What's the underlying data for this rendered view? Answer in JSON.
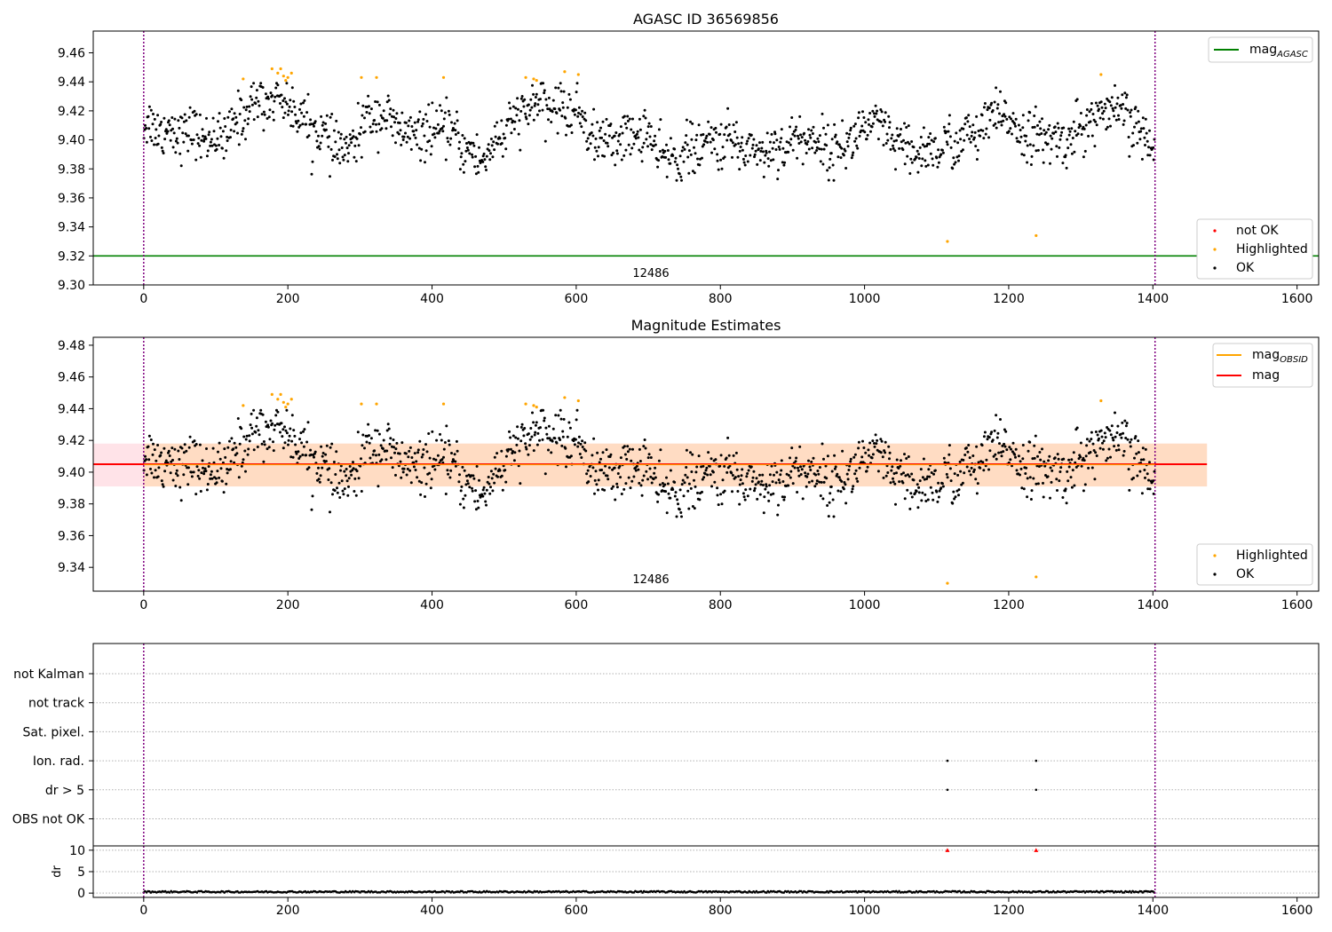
{
  "figure": {
    "background": "#ffffff"
  },
  "colors": {
    "ok": "#000000",
    "highlighted": "#ffa500",
    "not_ok": "#ff0000",
    "agasc_line": "#008000",
    "mean_line": "#ff0000",
    "obsid_line": "#ffa500",
    "band_outer": "#ffc0cb",
    "band_inner": "#ffdab9",
    "obsid_divider": "#800080",
    "grid": "#b0b0b0"
  },
  "chart_data": [
    {
      "type": "scatter",
      "title": "AGASC ID 36569856",
      "xlim": [
        -70,
        1630
      ],
      "ylim": [
        9.3,
        9.475
      ],
      "x_ticks": [
        0,
        200,
        400,
        600,
        800,
        1000,
        1200,
        1400,
        1600
      ],
      "y_ticks": [
        9.3,
        9.32,
        9.34,
        9.36,
        9.38,
        9.4,
        9.42,
        9.44,
        9.46
      ],
      "y_tick_labels": [
        "9.30",
        "9.32",
        "9.34",
        "9.36",
        "9.38",
        "9.40",
        "9.42",
        "9.44",
        "9.46"
      ],
      "mag_agasc": 9.32,
      "obsid_boundaries": [
        0,
        1403
      ],
      "obsid_label": "12486",
      "obsid_label_x": 700,
      "legend_upper": [
        {
          "name": "mag",
          "sub": "AGASC",
          "color": "#008000"
        }
      ],
      "legend_lower": [
        {
          "name": "not OK",
          "color": "#ff0000"
        },
        {
          "name": "Highlighted",
          "color": "#ffa500"
        },
        {
          "name": "OK",
          "color": "#000000"
        }
      ],
      "series": {
        "ok_points": {
          "count": 1403,
          "x_range": [
            0,
            1403
          ],
          "approx_mean": 9.404
        },
        "highlighted_points": [
          [
            138,
            9.442
          ],
          [
            178,
            9.449
          ],
          [
            186,
            9.446
          ],
          [
            190,
            9.449
          ],
          [
            194,
            9.444
          ],
          [
            197,
            9.441
          ],
          [
            200,
            9.443
          ],
          [
            205,
            9.446
          ],
          [
            302,
            9.443
          ],
          [
            323,
            9.443
          ],
          [
            416,
            9.443
          ],
          [
            530,
            9.443
          ],
          [
            541,
            9.442
          ],
          [
            545,
            9.441
          ],
          [
            584,
            9.447
          ],
          [
            603,
            9.445
          ],
          [
            1115,
            9.33
          ],
          [
            1238,
            9.334
          ],
          [
            1328,
            9.445
          ]
        ],
        "not_ok_points": []
      }
    },
    {
      "type": "scatter",
      "title": "Magnitude Estimates",
      "xlim": [
        -70,
        1630
      ],
      "ylim": [
        9.325,
        9.485
      ],
      "x_ticks": [
        0,
        200,
        400,
        600,
        800,
        1000,
        1200,
        1400,
        1600
      ],
      "y_ticks": [
        9.34,
        9.36,
        9.38,
        9.4,
        9.42,
        9.44,
        9.46,
        9.48
      ],
      "y_tick_labels": [
        "9.34",
        "9.36",
        "9.38",
        "9.40",
        "9.42",
        "9.44",
        "9.46",
        "9.48"
      ],
      "mag": 9.405,
      "mag_band": [
        9.391,
        9.418
      ],
      "mag_obsid": 9.405,
      "obsid_band": [
        9.391,
        9.418
      ],
      "band_x_range": [
        -70,
        1475
      ],
      "obsid_band_x_range": [
        0,
        1475
      ],
      "obsid_boundaries": [
        0,
        1403
      ],
      "obsid_label": "12486",
      "obsid_label_x": 700,
      "legend_upper": [
        {
          "name": "mag",
          "sub": "OBSID",
          "color": "#ffa500"
        },
        {
          "name": "mag",
          "sub": "",
          "color": "#ff0000"
        }
      ],
      "legend_lower": [
        {
          "name": "Highlighted",
          "color": "#ffa500"
        },
        {
          "name": "OK",
          "color": "#000000"
        }
      ]
    },
    {
      "type": "scatter",
      "title": "",
      "xlim": [
        -70,
        1630
      ],
      "x_ticks": [
        0,
        200,
        400,
        600,
        800,
        1000,
        1200,
        1400,
        1600
      ],
      "flag_categories": [
        "not Kalman",
        "not track",
        "Sat. pixel.",
        "Ion. rad.",
        "dr > 5",
        "OBS not OK"
      ],
      "flag_points": {
        "Ion. rad.": [
          1115,
          1238
        ],
        "dr > 5": [
          1115,
          1238
        ]
      },
      "obsid_boundaries": [
        0,
        1403
      ],
      "dr_ylabel": "dr",
      "dr_ylim": [
        -1,
        11
      ],
      "dr_ticks": [
        0,
        5,
        10
      ],
      "dr_outliers": [
        [
          1115,
          10
        ],
        [
          1238,
          10
        ]
      ],
      "dr_baseline_mean": 0.3
    }
  ]
}
